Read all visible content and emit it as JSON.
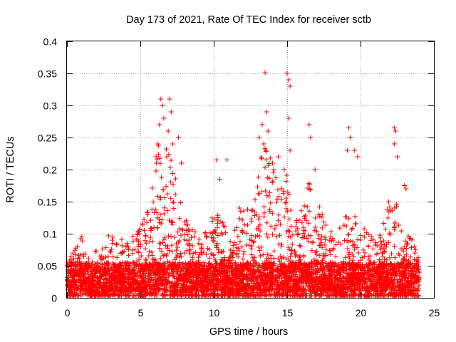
{
  "chart_data": {
    "type": "scatter",
    "title": "Day 173 of 2021, Rate Of TEC Index for receiver sctb",
    "xlabel": "GPS time / hours",
    "ylabel": "ROTI / TECUs",
    "xlim": [
      0,
      25
    ],
    "ylim": [
      0,
      0.4
    ],
    "xticks": [
      0,
      5,
      10,
      15,
      20,
      25
    ],
    "yticks": [
      0,
      0.05,
      0.1,
      0.15,
      0.2,
      0.25,
      0.3,
      0.35,
      0.4
    ],
    "grid": true,
    "legend": "none",
    "marker": "plus",
    "color": "#ff0000",
    "x_extent": [
      0,
      24
    ],
    "envelope": {
      "x": [
        0,
        0.5,
        1,
        1.5,
        2,
        2.5,
        3,
        3.5,
        4,
        4.5,
        5,
        5.5,
        6,
        6.5,
        7,
        7.5,
        8,
        8.5,
        9,
        9.5,
        10,
        10.5,
        11,
        11.5,
        12,
        12.5,
        13,
        13.5,
        14,
        14.5,
        15,
        15.5,
        16,
        16.5,
        17,
        17.5,
        18,
        18.5,
        19,
        19.5,
        20,
        20.5,
        21,
        21.5,
        22,
        22.5,
        23,
        23.5,
        24
      ],
      "y": [
        0.05,
        0.07,
        0.09,
        0.06,
        0.07,
        0.08,
        0.1,
        0.08,
        0.09,
        0.09,
        0.1,
        0.13,
        0.2,
        0.25,
        0.22,
        0.18,
        0.12,
        0.1,
        0.09,
        0.1,
        0.12,
        0.12,
        0.1,
        0.12,
        0.14,
        0.13,
        0.2,
        0.22,
        0.2,
        0.16,
        0.18,
        0.1,
        0.14,
        0.18,
        0.15,
        0.12,
        0.1,
        0.1,
        0.12,
        0.14,
        0.1,
        0.1,
        0.08,
        0.1,
        0.15,
        0.14,
        0.1,
        0.09,
        0.07
      ]
    },
    "outliers": [
      {
        "x": 6.1,
        "y": 0.21
      },
      {
        "x": 6.2,
        "y": 0.24
      },
      {
        "x": 6.3,
        "y": 0.27
      },
      {
        "x": 6.4,
        "y": 0.31
      },
      {
        "x": 6.5,
        "y": 0.3
      },
      {
        "x": 6.6,
        "y": 0.28
      },
      {
        "x": 6.8,
        "y": 0.22
      },
      {
        "x": 6.9,
        "y": 0.26
      },
      {
        "x": 7.0,
        "y": 0.31
      },
      {
        "x": 7.1,
        "y": 0.29
      },
      {
        "x": 7.2,
        "y": 0.24
      },
      {
        "x": 7.6,
        "y": 0.25
      },
      {
        "x": 7.8,
        "y": 0.21
      },
      {
        "x": 10.2,
        "y": 0.215
      },
      {
        "x": 10.9,
        "y": 0.215
      },
      {
        "x": 10.4,
        "y": 0.185
      },
      {
        "x": 13.1,
        "y": 0.25
      },
      {
        "x": 13.3,
        "y": 0.27
      },
      {
        "x": 13.4,
        "y": 0.24
      },
      {
        "x": 13.5,
        "y": 0.351
      },
      {
        "x": 13.6,
        "y": 0.29
      },
      {
        "x": 13.7,
        "y": 0.26
      },
      {
        "x": 14.0,
        "y": 0.21
      },
      {
        "x": 14.4,
        "y": 0.22
      },
      {
        "x": 14.8,
        "y": 0.2
      },
      {
        "x": 15.0,
        "y": 0.35
      },
      {
        "x": 15.1,
        "y": 0.34
      },
      {
        "x": 15.2,
        "y": 0.33
      },
      {
        "x": 15.1,
        "y": 0.28
      },
      {
        "x": 15.2,
        "y": 0.23
      },
      {
        "x": 16.5,
        "y": 0.27
      },
      {
        "x": 16.6,
        "y": 0.25
      },
      {
        "x": 16.9,
        "y": 0.2
      },
      {
        "x": 19.2,
        "y": 0.265
      },
      {
        "x": 19.3,
        "y": 0.25
      },
      {
        "x": 19.1,
        "y": 0.23
      },
      {
        "x": 19.6,
        "y": 0.23
      },
      {
        "x": 19.8,
        "y": 0.22
      },
      {
        "x": 22.3,
        "y": 0.265
      },
      {
        "x": 22.4,
        "y": 0.26
      },
      {
        "x": 22.3,
        "y": 0.24
      },
      {
        "x": 22.5,
        "y": 0.22
      },
      {
        "x": 23.0,
        "y": 0.175
      },
      {
        "x": 23.1,
        "y": 0.17
      }
    ]
  }
}
